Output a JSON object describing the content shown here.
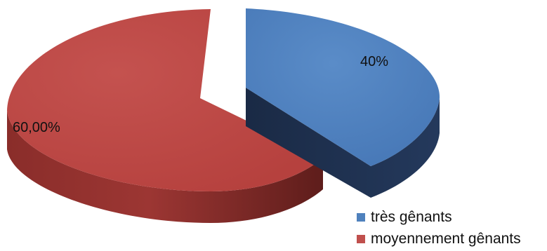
{
  "chart_data": {
    "type": "pie",
    "style": "3d-exploded",
    "title": "",
    "slices": [
      {
        "name": "très gênants",
        "value": 40,
        "label": "40%",
        "color": "#4f81bd",
        "side_color": "#1f3150"
      },
      {
        "name": "moyennement gênants",
        "value": 60,
        "label": "60,00%",
        "color": "#c0504d",
        "side_color": "#7a2a28"
      }
    ],
    "legend_position": "bottom-right",
    "legend": [
      {
        "label": "très gênants",
        "color": "#4f81bd"
      },
      {
        "label": "moyennement gênants",
        "color": "#c0504d"
      }
    ]
  }
}
